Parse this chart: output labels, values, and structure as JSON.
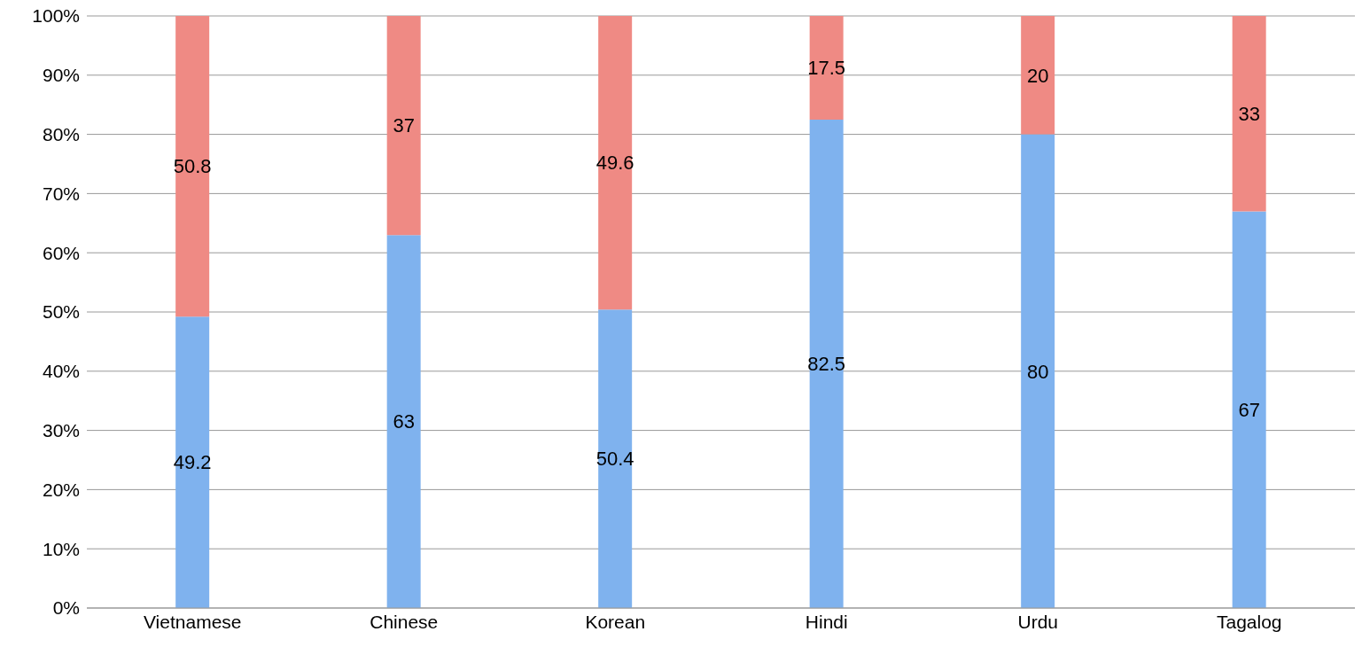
{
  "chart_data": {
    "type": "bar",
    "stacked": true,
    "categories": [
      "Vietnamese",
      "Chinese",
      "Korean",
      "Hindi",
      "Urdu",
      "Tagalog"
    ],
    "series": [
      {
        "color": "#7fb2ee",
        "values": [
          49.2,
          63,
          50.4,
          82.5,
          80,
          67
        ]
      },
      {
        "color": "#ef8a84",
        "values": [
          50.8,
          37,
          49.6,
          17.5,
          20,
          33
        ]
      }
    ],
    "ylim": [
      0,
      100
    ],
    "yticks": [
      {
        "value": 0,
        "label": "0%"
      },
      {
        "value": 10,
        "label": "10%"
      },
      {
        "value": 20,
        "label": "20%"
      },
      {
        "value": 30,
        "label": "30%"
      },
      {
        "value": 40,
        "label": "40%"
      },
      {
        "value": 50,
        "label": "50%"
      },
      {
        "value": 60,
        "label": "60%"
      },
      {
        "value": 70,
        "label": "70%"
      },
      {
        "value": 80,
        "label": "80%"
      },
      {
        "value": 90,
        "label": "90%"
      },
      {
        "value": 100,
        "label": "100%"
      }
    ],
    "grid": "y",
    "data_labels": true,
    "legend": false
  }
}
